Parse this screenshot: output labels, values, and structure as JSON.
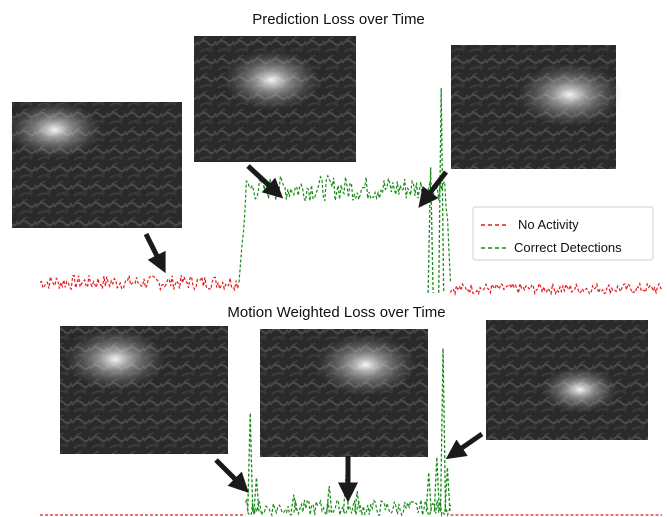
{
  "chart_data": [
    {
      "type": "line",
      "title": "Prediction Loss over Time",
      "xlabel": "",
      "ylabel": "",
      "grid": false,
      "legend": {
        "placement": "right",
        "entries": [
          "No Activity",
          "Correct Detections"
        ]
      },
      "series": [
        {
          "name": "No Activity",
          "color": "#e31a1c",
          "style": "dashed",
          "segments": [
            {
              "x": [
                0.0,
                0.32
              ],
              "level": 0.07,
              "noise": 0.035
            },
            {
              "x": [
                0.66,
                1.0
              ],
              "level": 0.04,
              "noise": 0.025
            }
          ]
        },
        {
          "name": "Correct Detections",
          "color": "#1a8a1a",
          "style": "dashed",
          "segments": [
            {
              "x": [
                0.32,
                0.66
              ],
              "level": 0.52,
              "noise": 0.06
            }
          ],
          "peaks": [
            {
              "x": 0.645,
              "y": 1.0
            },
            {
              "x": 0.628,
              "y": 0.62
            }
          ]
        }
      ]
    },
    {
      "type": "line",
      "title": "Motion Weighted Loss over Time",
      "xlabel": "",
      "ylabel": "",
      "grid": false,
      "series": [
        {
          "name": "No Activity",
          "color": "#e31a1c",
          "style": "dashed",
          "segments": [
            {
              "x": [
                0.0,
                0.33
              ],
              "level": 0.0,
              "noise": 0.0
            },
            {
              "x": [
                0.66,
                1.0
              ],
              "level": 0.0,
              "noise": 0.0
            }
          ]
        },
        {
          "name": "Correct Detections",
          "color": "#1a8a1a",
          "style": "dashed",
          "segments": [
            {
              "x": [
                0.33,
                0.66
              ],
              "level": 0.04,
              "noise": 0.05
            }
          ],
          "peaks": [
            {
              "x": 0.338,
              "y": 0.6
            },
            {
              "x": 0.348,
              "y": 0.22
            },
            {
              "x": 0.408,
              "y": 0.12
            },
            {
              "x": 0.465,
              "y": 0.17
            },
            {
              "x": 0.492,
              "y": 0.24
            },
            {
              "x": 0.51,
              "y": 0.14
            },
            {
              "x": 0.625,
              "y": 0.25
            },
            {
              "x": 0.638,
              "y": 0.34
            },
            {
              "x": 0.648,
              "y": 0.98
            },
            {
              "x": 0.655,
              "y": 0.28
            }
          ]
        }
      ]
    }
  ],
  "thumbnails": [
    {
      "name": "thumbnail-top-left",
      "glow": [
        0.25,
        0.22
      ],
      "glowSize": 0.28
    },
    {
      "name": "thumbnail-top-center",
      "glow": [
        0.48,
        0.35
      ],
      "glowSize": 0.3
    },
    {
      "name": "thumbnail-top-right",
      "glow": [
        0.72,
        0.4
      ],
      "glowSize": 0.32
    },
    {
      "name": "thumbnail-bottom-left",
      "glow": [
        0.33,
        0.26
      ],
      "glowSize": 0.3
    },
    {
      "name": "thumbnail-bottom-center",
      "glow": [
        0.63,
        0.28
      ],
      "glowSize": 0.3
    },
    {
      "name": "thumbnail-bottom-right",
      "glow": [
        0.58,
        0.58
      ],
      "glowSize": 0.24
    }
  ]
}
